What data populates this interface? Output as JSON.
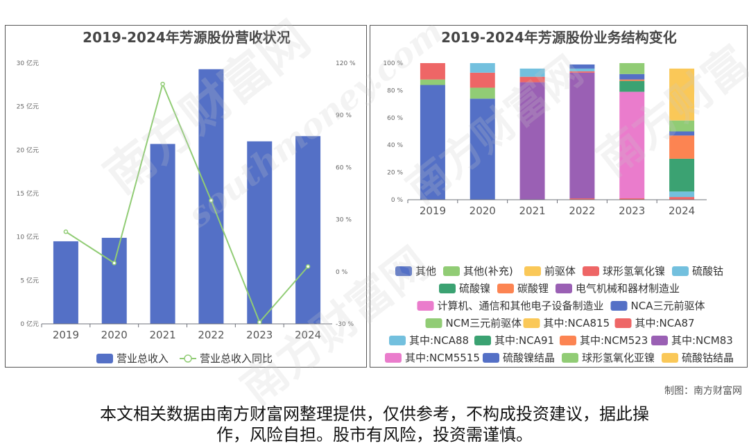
{
  "credit": "制图：南方财富网",
  "disclaimer_line1": "本文相关数据由南方财富网整理提供，仅供参考，不构成投资建议，据此操",
  "disclaimer_line2": "作，风险自担。股市有风险，投资需谨慎。",
  "watermark": "南方财富网 southmoney.com",
  "chart_data": [
    {
      "type": "bar",
      "title": "2019-2024年芳源股份营收状况",
      "categories": [
        "2019",
        "2020",
        "2021",
        "2022",
        "2023",
        "2024"
      ],
      "series": [
        {
          "name": "营业总收入",
          "type": "bar",
          "axis": "left",
          "values": [
            9.5,
            9.9,
            20.7,
            29.3,
            21.0,
            21.6
          ]
        },
        {
          "name": "营业总收入同比",
          "type": "line",
          "axis": "right",
          "values": [
            23,
            5,
            108,
            41,
            -29,
            3
          ]
        }
      ],
      "y_left": {
        "ylim": [
          0,
          30
        ],
        "ticks": [
          "0 亿元",
          "5 亿元",
          "10 亿元",
          "15 亿元",
          "20 亿元",
          "25 亿元",
          "30 亿元"
        ]
      },
      "y_right": {
        "ylim": [
          -30,
          120
        ],
        "ticks": [
          "-30 %",
          "0 %",
          "30 %",
          "60 %",
          "90 %",
          "120 %"
        ]
      },
      "colors": {
        "bar": "#5470c6",
        "line": "#91cc75"
      },
      "legend_position": "bottom"
    },
    {
      "type": "bar",
      "stacked": true,
      "title": "2019-2024年芳源股份业务结构变化",
      "categories": [
        "2019",
        "2020",
        "2021",
        "2022",
        "2023",
        "2024"
      ],
      "ylim": [
        0,
        100
      ],
      "yticks": [
        "0 %",
        "20 %",
        "40 %",
        "60 %",
        "80 %",
        "100 %"
      ],
      "legend_position": "bottom",
      "series": [
        {
          "name": "其他",
          "color": "#5470c6",
          "values": [
            0,
            0,
            0,
            0,
            0,
            0
          ]
        },
        {
          "name": "其他(补充)",
          "color": "#91cc75",
          "values": [
            0,
            0,
            0,
            0,
            0,
            0
          ]
        },
        {
          "name": "前驱体",
          "color": "#fac858",
          "values": [
            0,
            0,
            0,
            0,
            0,
            0
          ]
        },
        {
          "name": "球形氢氧化镍",
          "color": "#ee6666",
          "values": [
            0,
            0,
            0,
            1,
            1,
            2
          ]
        },
        {
          "name": "硫酸钴",
          "color": "#73c0de",
          "values": [
            0,
            0,
            0,
            0,
            0,
            4
          ]
        },
        {
          "name": "硫酸镍",
          "color": "#3ba272",
          "values": [
            0,
            0,
            0,
            0,
            0,
            24
          ]
        },
        {
          "name": "碳酸锂",
          "color": "#fc8452",
          "values": [
            0,
            0,
            0,
            0,
            0,
            17
          ]
        },
        {
          "name": "电气机械和器材制造业",
          "color": "#9a60b4",
          "values": [
            0,
            0,
            86,
            92,
            0,
            0
          ]
        },
        {
          "name": "计算机、通信和其他电子设备制造业",
          "color": "#ea7ccc",
          "values": [
            0,
            0,
            0,
            0,
            78,
            0
          ]
        },
        {
          "name": "NCA三元前驱体",
          "color": "#5470c6",
          "values": [
            84,
            74,
            0,
            0,
            0,
            0
          ]
        },
        {
          "name": "NCM三元前驱体",
          "color": "#91cc75",
          "values": [
            4,
            8,
            0,
            0,
            0,
            0
          ]
        },
        {
          "name": "其中:NCA815",
          "color": "#fac858",
          "values": [
            0,
            0,
            0,
            0,
            0,
            0
          ]
        },
        {
          "name": "其中:NCA87",
          "color": "#ee6666",
          "values": [
            12,
            11,
            4,
            1,
            0,
            0
          ]
        },
        {
          "name": "其中:NCA88",
          "color": "#73c0de",
          "values": [
            0,
            7,
            6,
            2,
            0,
            0
          ]
        },
        {
          "name": "其中:NCA91",
          "color": "#3ba272",
          "values": [
            0,
            0,
            0,
            0,
            8,
            0
          ]
        },
        {
          "name": "其中:NCM523",
          "color": "#fc8452",
          "values": [
            0,
            0,
            0,
            0,
            1,
            0
          ]
        },
        {
          "name": "其中:NCM83",
          "color": "#9a60b4",
          "values": [
            0,
            0,
            0,
            0,
            0,
            0
          ]
        },
        {
          "name": "其中:NCM5515",
          "color": "#ea7ccc",
          "values": [
            0,
            0,
            0,
            0,
            0,
            0
          ]
        },
        {
          "name": "硫酸镍结晶",
          "color": "#5470c6",
          "values": [
            0,
            0,
            0,
            3,
            4,
            3
          ]
        },
        {
          "name": "球形氢氧化亚镍",
          "color": "#91cc75",
          "values": [
            0,
            0,
            0,
            0,
            8,
            8
          ]
        },
        {
          "name": "硫酸钴结晶",
          "color": "#fac858",
          "values": [
            0,
            0,
            0,
            0,
            0,
            38
          ]
        }
      ]
    }
  ]
}
